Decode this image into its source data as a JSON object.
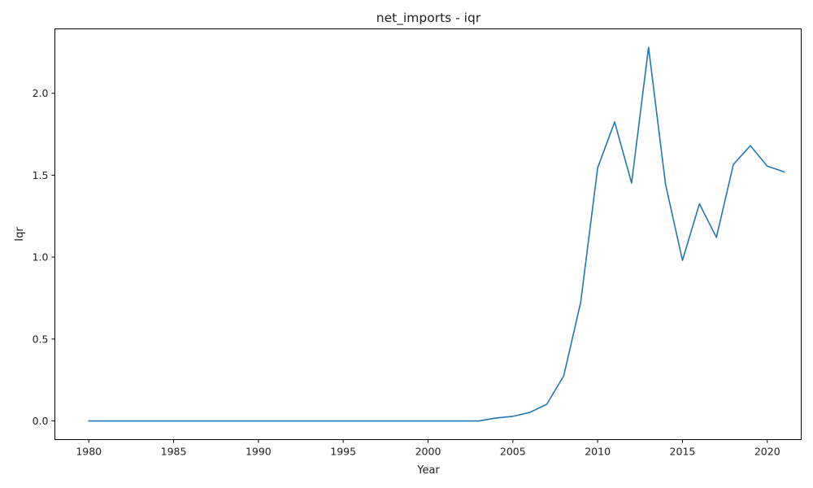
{
  "chart_data": {
    "type": "line",
    "title": "net_imports - iqr",
    "xlabel": "Year",
    "ylabel": "Iqr",
    "xlim": [
      1978,
      2022
    ],
    "ylim": [
      -0.114,
      2.393
    ],
    "xticks": [
      1980,
      1985,
      1990,
      1995,
      2000,
      2005,
      2010,
      2015,
      2020
    ],
    "yticks": [
      0.0,
      0.5,
      1.0,
      1.5,
      2.0
    ],
    "ytick_labels": [
      "0.0",
      "0.5",
      "1.0",
      "1.5",
      "2.0"
    ],
    "grid": false,
    "series": [
      {
        "color": "#1f77b4",
        "x": [
          1980,
          1981,
          1982,
          1983,
          1984,
          1985,
          1986,
          1987,
          1988,
          1989,
          1990,
          1991,
          1992,
          1993,
          1994,
          1995,
          1996,
          1997,
          1998,
          1999,
          2000,
          2001,
          2002,
          2003,
          2004,
          2005,
          2006,
          2007,
          2008,
          2009,
          2010,
          2011,
          2012,
          2013,
          2014,
          2015,
          2016,
          2017,
          2018,
          2019,
          2020,
          2021
        ],
        "y": [
          0,
          0,
          0,
          0,
          0,
          0,
          0,
          0,
          0,
          0,
          0,
          0,
          0,
          0,
          0,
          0,
          0,
          0,
          0,
          0,
          0,
          0,
          0,
          0,
          0.018,
          0.028,
          0.052,
          0.102,
          0.275,
          0.725,
          1.545,
          1.825,
          1.452,
          2.28,
          1.445,
          0.98,
          1.325,
          1.12,
          1.565,
          1.68,
          1.555,
          1.52
        ]
      }
    ]
  }
}
